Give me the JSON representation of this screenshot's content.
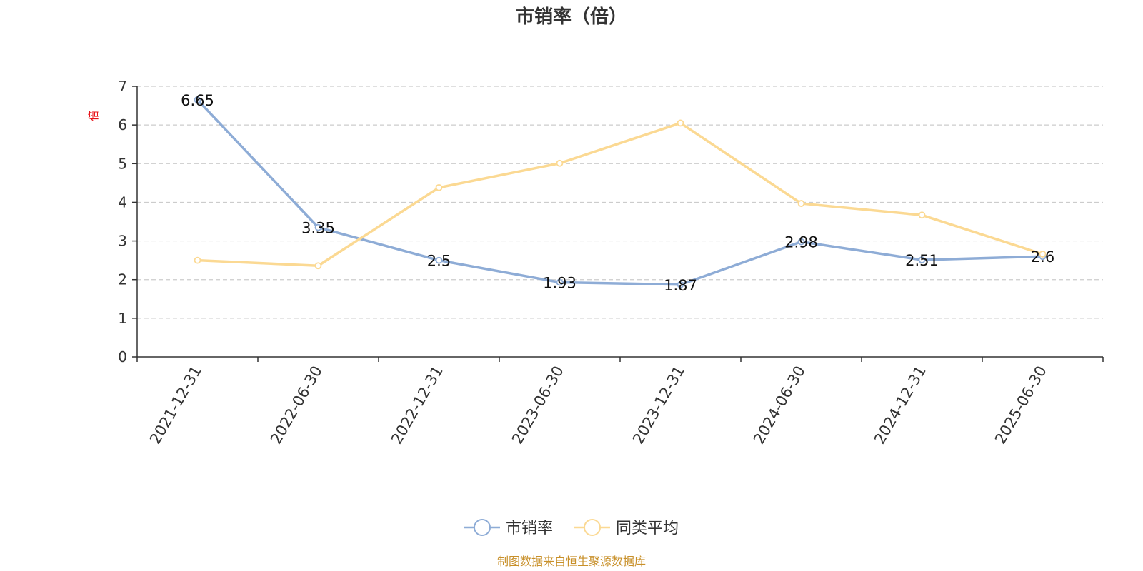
{
  "chart_data": {
    "type": "line",
    "title": "市销率（倍）",
    "ylabel": "倍",
    "ylim": [
      0,
      7
    ],
    "yticks": [
      0,
      1,
      2,
      3,
      4,
      5,
      6,
      7
    ],
    "grid": true,
    "legend_position": "bottom-center",
    "categories": [
      "2021-12-31",
      "2022-06-30",
      "2022-12-31",
      "2023-06-30",
      "2023-12-31",
      "2024-06-30",
      "2024-12-31",
      "2025-06-30"
    ],
    "series": [
      {
        "name": "市销率",
        "color": "#8eacd6",
        "values": [
          6.65,
          3.35,
          2.5,
          1.93,
          1.87,
          2.98,
          2.51,
          2.6
        ],
        "labels": [
          "6.65",
          "3.35",
          "2.5",
          "1.93",
          "1.87",
          "2.98",
          "2.51",
          "2.6"
        ]
      },
      {
        "name": "同类平均",
        "color": "#fbd993",
        "values": [
          2.5,
          2.36,
          4.38,
          5.01,
          6.05,
          3.97,
          3.67,
          2.66
        ]
      }
    ],
    "source": "制图数据来自恒生聚源数据库"
  }
}
